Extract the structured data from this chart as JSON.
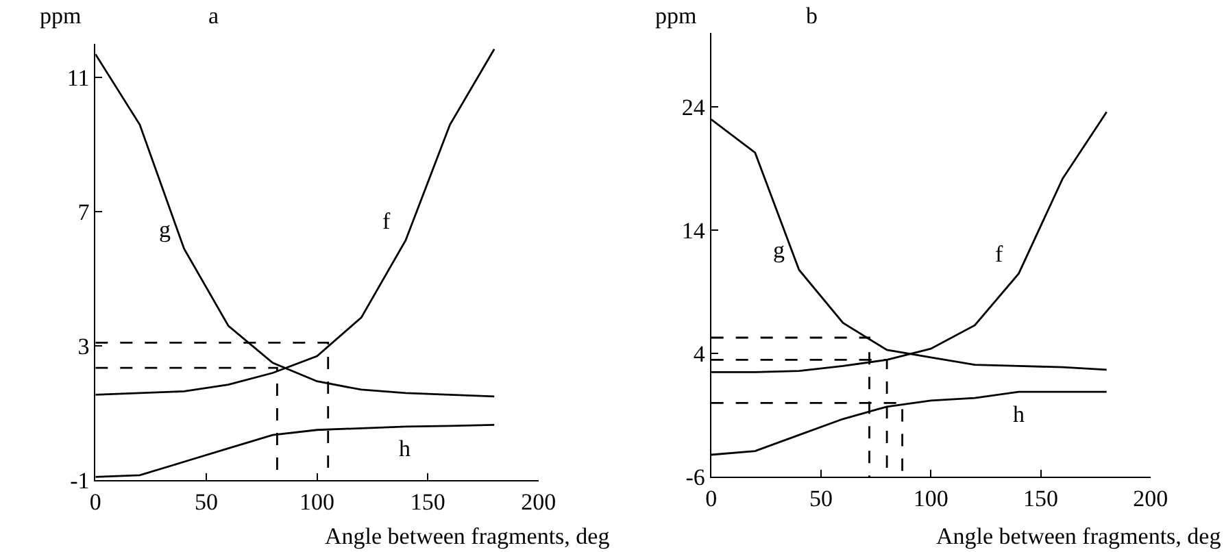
{
  "chart_data": [
    {
      "type": "line",
      "title": "a",
      "xlabel": "Angle between fragments, deg",
      "ylabel": "ppm",
      "xlim": [
        0,
        200
      ],
      "xticks": [
        0,
        50,
        100,
        150,
        200
      ],
      "ylim": [
        -1,
        12
      ],
      "yticks": [
        -1,
        3,
        7,
        11
      ],
      "grid": false,
      "legend": false,
      "x": [
        0,
        20,
        40,
        60,
        80,
        100,
        120,
        140,
        160,
        180
      ],
      "series": [
        {
          "name": "f",
          "color": "#000000",
          "values": [
            1.55,
            1.6,
            1.65,
            1.85,
            2.2,
            2.7,
            3.85,
            6.15,
            9.6,
            11.85
          ]
        },
        {
          "name": "g",
          "color": "#000000",
          "values": [
            11.7,
            9.6,
            5.9,
            3.6,
            2.5,
            1.95,
            1.7,
            1.6,
            1.55,
            1.5
          ]
        },
        {
          "name": "h",
          "color": "#000000",
          "values": [
            -0.9,
            -0.85,
            -0.45,
            -0.05,
            0.35,
            0.5,
            0.55,
            0.6,
            0.62,
            0.65
          ]
        },
        {
          "color": "#000000",
          "line_style": "dashed",
          "x": [
            0,
            105,
            105
          ],
          "values": [
            3.1,
            3.1,
            -1
          ]
        },
        {
          "color": "#000000",
          "line_style": "dashed",
          "x": [
            0,
            82,
            82
          ],
          "values": [
            2.35,
            2.35,
            -1
          ]
        }
      ]
    },
    {
      "type": "line",
      "title": "b",
      "xlabel": "Angle between fragments, deg",
      "ylabel": "ppm",
      "xlim": [
        0,
        200
      ],
      "xticks": [
        0,
        50,
        100,
        150,
        200
      ],
      "ylim": [
        -6,
        30
      ],
      "yticks": [
        -6,
        4,
        14,
        24
      ],
      "grid": false,
      "legend": false,
      "x": [
        0,
        20,
        40,
        60,
        80,
        100,
        120,
        140,
        160,
        180
      ],
      "series": [
        {
          "name": "f",
          "color": "#000000",
          "values": [
            2.5,
            2.5,
            2.6,
            3.0,
            3.5,
            4.4,
            6.3,
            10.5,
            18.2,
            23.6
          ]
        },
        {
          "name": "g",
          "color": "#000000",
          "values": [
            23,
            20.3,
            10.8,
            6.5,
            4.3,
            3.7,
            3.1,
            3.0,
            2.9,
            2.7
          ]
        },
        {
          "name": "h",
          "color": "#000000",
          "values": [
            -4.2,
            -3.9,
            -2.6,
            -1.3,
            -0.3,
            0.2,
            0.4,
            0.9,
            0.9,
            0.9
          ]
        },
        {
          "color": "#000000",
          "line_style": "dashed",
          "x": [
            0,
            72,
            72
          ],
          "values": [
            5.3,
            5.3,
            -6
          ]
        },
        {
          "color": "#000000",
          "line_style": "dashed",
          "x": [
            0,
            80,
            80
          ],
          "values": [
            3.5,
            3.5,
            -6
          ]
        },
        {
          "color": "#000000",
          "line_style": "dashed",
          "x": [
            0,
            87,
            87
          ],
          "values": [
            0,
            0,
            -6
          ]
        }
      ]
    }
  ]
}
